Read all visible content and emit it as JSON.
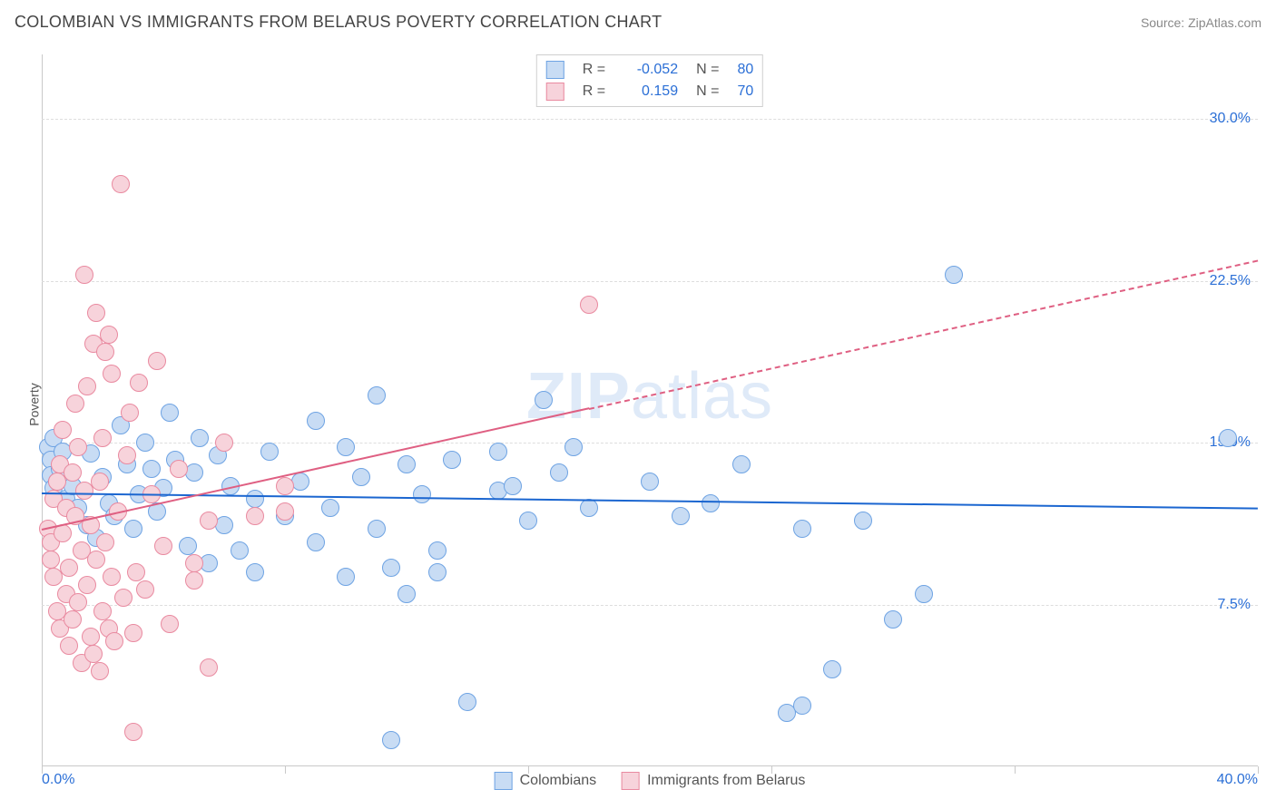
{
  "header": {
    "title": "COLOMBIAN VS IMMIGRANTS FROM BELARUS POVERTY CORRELATION CHART",
    "source_prefix": "Source: ",
    "source": "ZipAtlas.com"
  },
  "chart": {
    "type": "scatter",
    "ylabel": "Poverty",
    "xlim": [
      0,
      40
    ],
    "ylim": [
      0,
      33
    ],
    "y_ticks": [
      7.5,
      15.0,
      22.5,
      30.0
    ],
    "y_tick_labels": [
      "7.5%",
      "15.0%",
      "22.5%",
      "30.0%"
    ],
    "x_ticks": [
      0,
      8,
      16,
      24,
      32,
      40
    ],
    "x_min_label": "0.0%",
    "x_max_label": "40.0%",
    "background_color": "#ffffff",
    "grid_color": "#dddddd",
    "axis_color": "#c9c9c9",
    "point_radius": 10,
    "watermark": "ZIPatlas",
    "watermark_color": "#dfeaf8",
    "series": [
      {
        "name": "Colombians",
        "fill": "#c8dcf4",
        "stroke": "#6ea3e3",
        "trend_color": "#1b66d0",
        "R": "-0.052",
        "N": "80",
        "trend_y_at_xmin": 12.7,
        "trend_y_at_xmax": 12.0,
        "points": [
          [
            0.2,
            14.8
          ],
          [
            0.3,
            14.2
          ],
          [
            0.3,
            13.5
          ],
          [
            0.4,
            12.9
          ],
          [
            0.4,
            15.2
          ],
          [
            0.5,
            13.2
          ],
          [
            0.6,
            13.8
          ],
          [
            0.7,
            14.6
          ],
          [
            0.8,
            12.4
          ],
          [
            1.0,
            13.0
          ],
          [
            1.2,
            12.0
          ],
          [
            1.5,
            11.2
          ],
          [
            1.6,
            14.5
          ],
          [
            1.8,
            10.6
          ],
          [
            2.0,
            13.4
          ],
          [
            2.2,
            12.2
          ],
          [
            2.4,
            11.6
          ],
          [
            2.6,
            15.8
          ],
          [
            2.8,
            14.0
          ],
          [
            3.0,
            11.0
          ],
          [
            3.2,
            12.6
          ],
          [
            3.4,
            15.0
          ],
          [
            3.6,
            13.8
          ],
          [
            3.8,
            11.8
          ],
          [
            4.0,
            12.9
          ],
          [
            4.2,
            16.4
          ],
          [
            4.4,
            14.2
          ],
          [
            4.8,
            10.2
          ],
          [
            5.0,
            13.6
          ],
          [
            5.2,
            15.2
          ],
          [
            5.5,
            9.4
          ],
          [
            5.8,
            14.4
          ],
          [
            6.0,
            11.2
          ],
          [
            6.2,
            13.0
          ],
          [
            6.5,
            10.0
          ],
          [
            7.0,
            12.4
          ],
          [
            7.0,
            9.0
          ],
          [
            7.5,
            14.6
          ],
          [
            8.0,
            11.6
          ],
          [
            8.5,
            13.2
          ],
          [
            9.0,
            16.0
          ],
          [
            9.0,
            10.4
          ],
          [
            9.5,
            12.0
          ],
          [
            10.0,
            14.8
          ],
          [
            10.0,
            8.8
          ],
          [
            10.5,
            13.4
          ],
          [
            11.0,
            17.2
          ],
          [
            11.0,
            11.0
          ],
          [
            11.5,
            9.2
          ],
          [
            12.0,
            14.0
          ],
          [
            12.0,
            8.0
          ],
          [
            12.5,
            12.6
          ],
          [
            13.0,
            10.0
          ],
          [
            13.0,
            9.0
          ],
          [
            13.5,
            14.2
          ],
          [
            14.0,
            3.0
          ],
          [
            15.0,
            12.8
          ],
          [
            15.0,
            14.6
          ],
          [
            15.5,
            13.0
          ],
          [
            16.0,
            11.4
          ],
          [
            16.5,
            17.0
          ],
          [
            17.0,
            13.6
          ],
          [
            17.5,
            14.8
          ],
          [
            18.0,
            12.0
          ],
          [
            20.0,
            13.2
          ],
          [
            21.0,
            11.6
          ],
          [
            22.0,
            12.2
          ],
          [
            23.0,
            14.0
          ],
          [
            24.5,
            2.5
          ],
          [
            25.0,
            2.8
          ],
          [
            25.0,
            11.0
          ],
          [
            26.0,
            4.5
          ],
          [
            27.0,
            11.4
          ],
          [
            28.0,
            6.8
          ],
          [
            29.0,
            8.0
          ],
          [
            30.0,
            22.8
          ],
          [
            39.0,
            15.2
          ],
          [
            11.5,
            1.2
          ]
        ]
      },
      {
        "name": "Immigrants from Belarus",
        "fill": "#f7d3db",
        "stroke": "#e98aa0",
        "trend_color": "#df5f82",
        "R": "0.159",
        "N": "70",
        "trend_y_at_xmin": 11.0,
        "trend_y_at_xmax": 23.5,
        "solid_until_x": 18,
        "points": [
          [
            0.2,
            11.0
          ],
          [
            0.3,
            10.4
          ],
          [
            0.3,
            9.6
          ],
          [
            0.4,
            8.8
          ],
          [
            0.4,
            12.4
          ],
          [
            0.5,
            13.2
          ],
          [
            0.5,
            7.2
          ],
          [
            0.6,
            14.0
          ],
          [
            0.6,
            6.4
          ],
          [
            0.7,
            10.8
          ],
          [
            0.7,
            15.6
          ],
          [
            0.8,
            8.0
          ],
          [
            0.8,
            12.0
          ],
          [
            0.9,
            9.2
          ],
          [
            0.9,
            5.6
          ],
          [
            1.0,
            13.6
          ],
          [
            1.0,
            6.8
          ],
          [
            1.1,
            11.6
          ],
          [
            1.1,
            16.8
          ],
          [
            1.2,
            7.6
          ],
          [
            1.2,
            14.8
          ],
          [
            1.3,
            4.8
          ],
          [
            1.3,
            10.0
          ],
          [
            1.4,
            12.8
          ],
          [
            1.4,
            22.8
          ],
          [
            1.5,
            8.4
          ],
          [
            1.5,
            17.6
          ],
          [
            1.6,
            6.0
          ],
          [
            1.6,
            11.2
          ],
          [
            1.7,
            5.2
          ],
          [
            1.7,
            19.6
          ],
          [
            1.8,
            9.6
          ],
          [
            1.8,
            21.0
          ],
          [
            1.9,
            4.4
          ],
          [
            1.9,
            13.2
          ],
          [
            2.0,
            7.2
          ],
          [
            2.0,
            15.2
          ],
          [
            2.1,
            10.4
          ],
          [
            2.1,
            19.2
          ],
          [
            2.2,
            6.4
          ],
          [
            2.2,
            20.0
          ],
          [
            2.3,
            8.8
          ],
          [
            2.3,
            18.2
          ],
          [
            2.4,
            5.8
          ],
          [
            2.5,
            11.8
          ],
          [
            2.6,
            27.0
          ],
          [
            2.7,
            7.8
          ],
          [
            2.8,
            14.4
          ],
          [
            2.9,
            16.4
          ],
          [
            3.0,
            6.2
          ],
          [
            3.1,
            9.0
          ],
          [
            3.2,
            17.8
          ],
          [
            3.4,
            8.2
          ],
          [
            3.0,
            1.6
          ],
          [
            3.6,
            12.6
          ],
          [
            3.8,
            18.8
          ],
          [
            4.0,
            10.2
          ],
          [
            4.2,
            6.6
          ],
          [
            4.5,
            13.8
          ],
          [
            5.0,
            9.4
          ],
          [
            5.0,
            8.6
          ],
          [
            5.5,
            11.4
          ],
          [
            5.5,
            4.6
          ],
          [
            6.0,
            15.0
          ],
          [
            7.0,
            11.6
          ],
          [
            8.0,
            13.0
          ],
          [
            8.0,
            11.8
          ],
          [
            18.0,
            21.4
          ]
        ]
      }
    ],
    "legend_bottom": [
      {
        "label": "Colombians",
        "swatch_fill": "#c8dcf4",
        "swatch_stroke": "#6ea3e3"
      },
      {
        "label": "Immigrants from Belarus",
        "swatch_fill": "#f7d3db",
        "swatch_stroke": "#e98aa0"
      }
    ],
    "legend_top_labels": {
      "R": "R =",
      "N": "N ="
    }
  }
}
